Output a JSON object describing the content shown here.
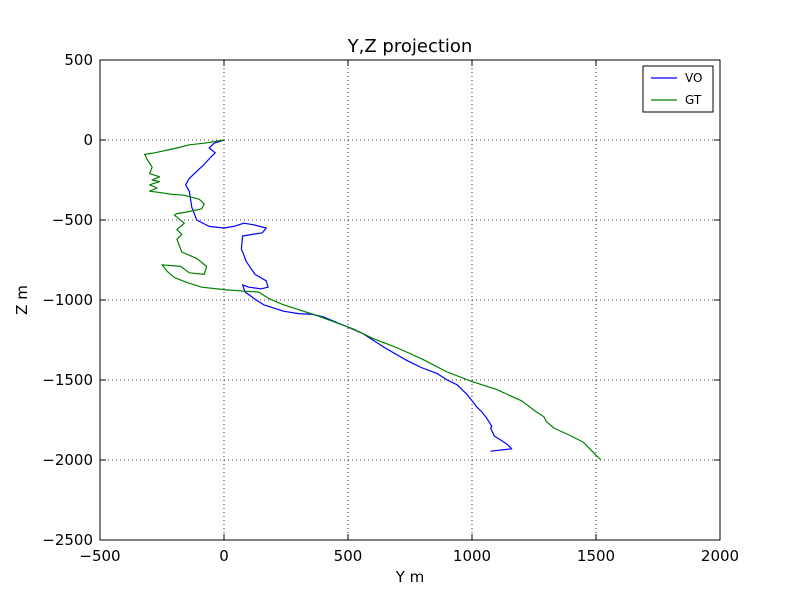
{
  "chart_data": {
    "type": "line",
    "title": "Y,Z projection",
    "xlabel": "Y m",
    "ylabel": "Z m",
    "xlim": [
      -500,
      2000
    ],
    "ylim": [
      -2500,
      500
    ],
    "xticks": [
      -500,
      0,
      500,
      1000,
      1500,
      2000
    ],
    "yticks": [
      500,
      0,
      -500,
      -1000,
      -1500,
      -2000,
      -2500
    ],
    "xtick_labels": [
      "−500",
      "0",
      "500",
      "1000",
      "1500",
      "2000"
    ],
    "ytick_labels": [
      "500",
      "0",
      "−500",
      "−1000",
      "−1500",
      "−2000",
      "−2500"
    ],
    "grid": true,
    "legend_position": "top-right",
    "series": [
      {
        "name": "VO",
        "color": "#0000ff",
        "points": [
          [
            0,
            0
          ],
          [
            -40,
            -20
          ],
          [
            -60,
            -50
          ],
          [
            -35,
            -80
          ],
          [
            -55,
            -110
          ],
          [
            -85,
            -160
          ],
          [
            -140,
            -240
          ],
          [
            -155,
            -280
          ],
          [
            -140,
            -320
          ],
          [
            -130,
            -420
          ],
          [
            -110,
            -500
          ],
          [
            -60,
            -540
          ],
          [
            0,
            -550
          ],
          [
            40,
            -540
          ],
          [
            80,
            -520
          ],
          [
            120,
            -530
          ],
          [
            170,
            -550
          ],
          [
            155,
            -580
          ],
          [
            75,
            -600
          ],
          [
            70,
            -680
          ],
          [
            90,
            -760
          ],
          [
            125,
            -840
          ],
          [
            170,
            -880
          ],
          [
            178,
            -920
          ],
          [
            150,
            -930
          ],
          [
            100,
            -920
          ],
          [
            75,
            -905
          ],
          [
            85,
            -950
          ],
          [
            130,
            -1000
          ],
          [
            160,
            -1030
          ],
          [
            240,
            -1070
          ],
          [
            300,
            -1085
          ],
          [
            360,
            -1090
          ],
          [
            400,
            -1105
          ],
          [
            470,
            -1150
          ],
          [
            560,
            -1210
          ],
          [
            650,
            -1300
          ],
          [
            740,
            -1380
          ],
          [
            800,
            -1425
          ],
          [
            860,
            -1460
          ],
          [
            900,
            -1500
          ],
          [
            940,
            -1530
          ],
          [
            980,
            -1590
          ],
          [
            1000,
            -1630
          ],
          [
            1020,
            -1670
          ],
          [
            1040,
            -1700
          ],
          [
            1060,
            -1740
          ],
          [
            1080,
            -1790
          ],
          [
            1075,
            -1800
          ],
          [
            1090,
            -1850
          ],
          [
            1120,
            -1880
          ],
          [
            1140,
            -1900
          ],
          [
            1160,
            -1930
          ],
          [
            1075,
            -1945
          ]
        ]
      },
      {
        "name": "GT",
        "color": "#008000",
        "points": [
          [
            0,
            0
          ],
          [
            -80,
            -20
          ],
          [
            -140,
            -30
          ],
          [
            -190,
            -50
          ],
          [
            -280,
            -80
          ],
          [
            -320,
            -90
          ],
          [
            -310,
            -120
          ],
          [
            -290,
            -170
          ],
          [
            -300,
            -210
          ],
          [
            -260,
            -230
          ],
          [
            -290,
            -250
          ],
          [
            -260,
            -260
          ],
          [
            -300,
            -280
          ],
          [
            -270,
            -300
          ],
          [
            -300,
            -320
          ],
          [
            -250,
            -330
          ],
          [
            -210,
            -340
          ],
          [
            -160,
            -345
          ],
          [
            -100,
            -370
          ],
          [
            -80,
            -400
          ],
          [
            -90,
            -430
          ],
          [
            -150,
            -450
          ],
          [
            -190,
            -460
          ],
          [
            -200,
            -470
          ],
          [
            -160,
            -520
          ],
          [
            -190,
            -560
          ],
          [
            -170,
            -590
          ],
          [
            -190,
            -620
          ],
          [
            -170,
            -700
          ],
          [
            -110,
            -740
          ],
          [
            -70,
            -790
          ],
          [
            -80,
            -840
          ],
          [
            -140,
            -830
          ],
          [
            -175,
            -790
          ],
          [
            -250,
            -780
          ],
          [
            -230,
            -820
          ],
          [
            -200,
            -860
          ],
          [
            -150,
            -890
          ],
          [
            -90,
            -920
          ],
          [
            0,
            -935
          ],
          [
            80,
            -945
          ],
          [
            140,
            -950
          ],
          [
            180,
            -990
          ],
          [
            240,
            -1030
          ],
          [
            300,
            -1060
          ],
          [
            380,
            -1100
          ],
          [
            450,
            -1140
          ],
          [
            520,
            -1180
          ],
          [
            600,
            -1240
          ],
          [
            700,
            -1300
          ],
          [
            800,
            -1370
          ],
          [
            900,
            -1450
          ],
          [
            1000,
            -1510
          ],
          [
            1100,
            -1560
          ],
          [
            1200,
            -1630
          ],
          [
            1260,
            -1700
          ],
          [
            1290,
            -1730
          ],
          [
            1300,
            -1760
          ],
          [
            1330,
            -1800
          ],
          [
            1400,
            -1850
          ],
          [
            1450,
            -1890
          ],
          [
            1500,
            -1970
          ],
          [
            1520,
            -2000
          ]
        ]
      }
    ]
  }
}
